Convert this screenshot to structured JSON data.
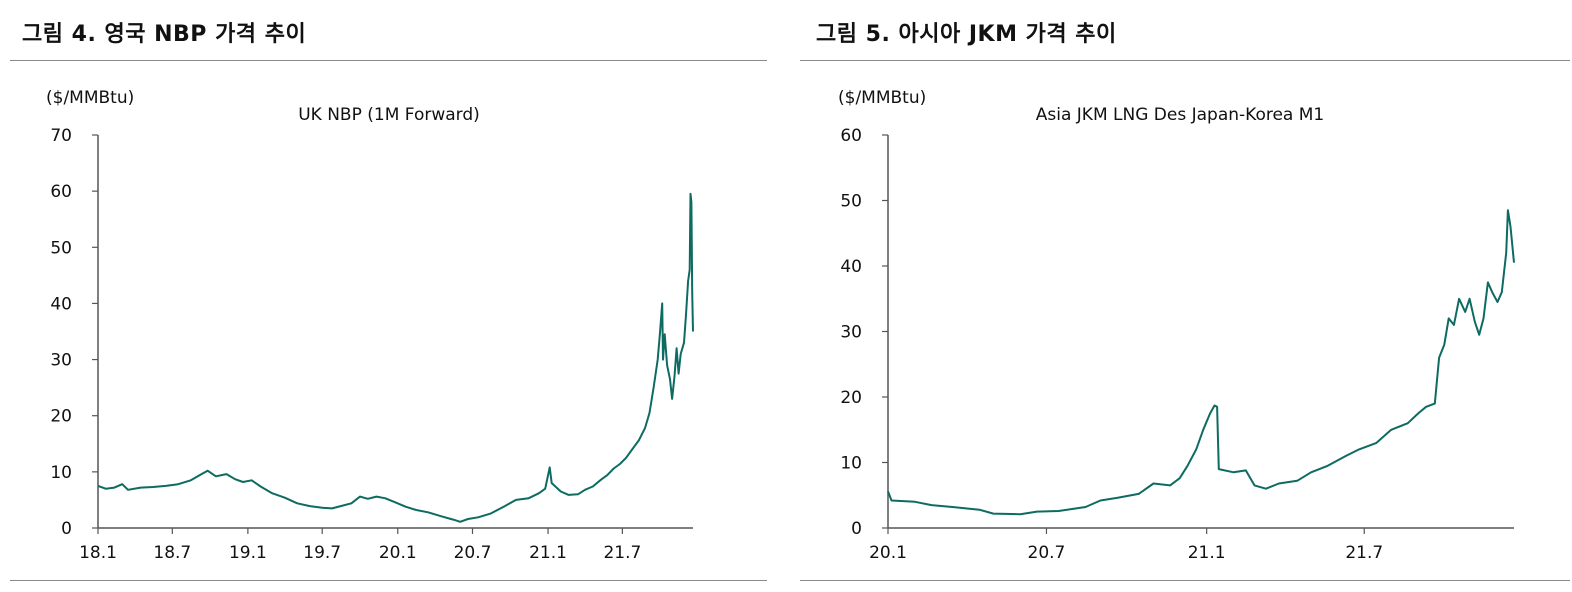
{
  "colors": {
    "line": "#0d6b61",
    "axis": "#555555",
    "rule": "#8a8a8a",
    "text": "#111111"
  },
  "chart_data": [
    {
      "figure_title": "그림 4. 영국 NBP 가격 추이",
      "type": "line",
      "title": "UK NBP (1M Forward)",
      "unit_label": "($/MMBtu)",
      "ylim": [
        0,
        70
      ],
      "yticks": [
        0,
        10,
        20,
        30,
        40,
        50,
        60,
        70
      ],
      "xlim": [
        "2018-01-01",
        "2021-12-20"
      ],
      "xticks": [
        {
          "label": "18.1",
          "date": "2018-01-01"
        },
        {
          "label": "18.7",
          "date": "2018-07-01"
        },
        {
          "label": "19.1",
          "date": "2019-01-01"
        },
        {
          "label": "19.7",
          "date": "2019-07-01"
        },
        {
          "label": "20.1",
          "date": "2020-01-01"
        },
        {
          "label": "20.7",
          "date": "2020-07-01"
        },
        {
          "label": "21.1",
          "date": "2021-01-01"
        },
        {
          "label": "21.7",
          "date": "2021-07-01"
        }
      ],
      "grid": false,
      "series": [
        {
          "values": [
            [
              "2018-01-01",
              7.5
            ],
            [
              "2018-01-20",
              7.0
            ],
            [
              "2018-02-10",
              7.2
            ],
            [
              "2018-03-01",
              7.8
            ],
            [
              "2018-03-15",
              6.8
            ],
            [
              "2018-04-15",
              7.2
            ],
            [
              "2018-05-15",
              7.3
            ],
            [
              "2018-06-15",
              7.5
            ],
            [
              "2018-07-15",
              7.8
            ],
            [
              "2018-08-15",
              8.5
            ],
            [
              "2018-09-10",
              9.6
            ],
            [
              "2018-09-25",
              10.2
            ],
            [
              "2018-10-15",
              9.2
            ],
            [
              "2018-11-10",
              9.6
            ],
            [
              "2018-12-01",
              8.7
            ],
            [
              "2018-12-20",
              8.2
            ],
            [
              "2019-01-10",
              8.5
            ],
            [
              "2019-02-01",
              7.4
            ],
            [
              "2019-03-01",
              6.2
            ],
            [
              "2019-04-01",
              5.4
            ],
            [
              "2019-05-01",
              4.4
            ],
            [
              "2019-06-01",
              3.9
            ],
            [
              "2019-07-01",
              3.6
            ],
            [
              "2019-07-25",
              3.5
            ],
            [
              "2019-08-15",
              3.9
            ],
            [
              "2019-09-10",
              4.4
            ],
            [
              "2019-10-01",
              5.6
            ],
            [
              "2019-10-20",
              5.2
            ],
            [
              "2019-11-10",
              5.6
            ],
            [
              "2019-12-01",
              5.3
            ],
            [
              "2019-12-25",
              4.6
            ],
            [
              "2020-01-20",
              3.8
            ],
            [
              "2020-02-15",
              3.2
            ],
            [
              "2020-03-15",
              2.8
            ],
            [
              "2020-04-15",
              2.1
            ],
            [
              "2020-05-15",
              1.5
            ],
            [
              "2020-06-01",
              1.1
            ],
            [
              "2020-06-20",
              1.6
            ],
            [
              "2020-07-15",
              1.9
            ],
            [
              "2020-08-15",
              2.6
            ],
            [
              "2020-09-15",
              3.8
            ],
            [
              "2020-10-15",
              5.0
            ],
            [
              "2020-11-15",
              5.3
            ],
            [
              "2020-12-10",
              6.2
            ],
            [
              "2020-12-25",
              7.0
            ],
            [
              "2021-01-05",
              10.8
            ],
            [
              "2021-01-10",
              8.0
            ],
            [
              "2021-02-01",
              6.5
            ],
            [
              "2021-02-20",
              5.9
            ],
            [
              "2021-03-15",
              6.0
            ],
            [
              "2021-04-01",
              6.8
            ],
            [
              "2021-04-20",
              7.4
            ],
            [
              "2021-05-10",
              8.6
            ],
            [
              "2021-05-25",
              9.4
            ],
            [
              "2021-06-10",
              10.6
            ],
            [
              "2021-06-25",
              11.4
            ],
            [
              "2021-07-10",
              12.5
            ],
            [
              "2021-07-25",
              14.0
            ],
            [
              "2021-08-10",
              15.6
            ],
            [
              "2021-08-25",
              17.8
            ],
            [
              "2021-09-05",
              20.5
            ],
            [
              "2021-09-15",
              25.0
            ],
            [
              "2021-09-25",
              30.0
            ],
            [
              "2021-10-01",
              35.0
            ],
            [
              "2021-10-06",
              40.0
            ],
            [
              "2021-10-08",
              30.0
            ],
            [
              "2021-10-12",
              34.5
            ],
            [
              "2021-10-18",
              29.0
            ],
            [
              "2021-10-25",
              26.5
            ],
            [
              "2021-10-30",
              23.0
            ],
            [
              "2021-11-05",
              27.0
            ],
            [
              "2021-11-10",
              32.0
            ],
            [
              "2021-11-15",
              27.5
            ],
            [
              "2021-11-20",
              31.0
            ],
            [
              "2021-11-28",
              33.0
            ],
            [
              "2021-12-03",
              38.0
            ],
            [
              "2021-12-08",
              44.0
            ],
            [
              "2021-12-12",
              46.0
            ],
            [
              "2021-12-14",
              59.5
            ],
            [
              "2021-12-16",
              58.0
            ],
            [
              "2021-12-18",
              42.0
            ],
            [
              "2021-12-20",
              35.0
            ]
          ]
        }
      ]
    },
    {
      "figure_title": "그림 5. 아시아 JKM 가격 추이",
      "type": "line",
      "title": "Asia JKM LNG Des Japan-Korea M1",
      "unit_label": "($/MMBtu)",
      "ylim": [
        0,
        60
      ],
      "yticks": [
        0,
        10,
        20,
        30,
        40,
        50,
        60
      ],
      "xlim": [
        "2020-01-01",
        "2021-12-20"
      ],
      "xticks": [
        {
          "label": "20.1",
          "date": "2020-01-01"
        },
        {
          "label": "20.7",
          "date": "2020-07-01"
        },
        {
          "label": "21.1",
          "date": "2021-01-01"
        },
        {
          "label": "21.7",
          "date": "2021-07-01"
        }
      ],
      "grid": false,
      "series": [
        {
          "values": [
            [
              "2020-01-01",
              5.6
            ],
            [
              "2020-01-05",
              4.2
            ],
            [
              "2020-02-01",
              4.0
            ],
            [
              "2020-02-20",
              3.5
            ],
            [
              "2020-03-15",
              3.2
            ],
            [
              "2020-04-15",
              2.8
            ],
            [
              "2020-05-01",
              2.2
            ],
            [
              "2020-06-01",
              2.1
            ],
            [
              "2020-06-20",
              2.5
            ],
            [
              "2020-07-15",
              2.6
            ],
            [
              "2020-08-15",
              3.2
            ],
            [
              "2020-09-01",
              4.2
            ],
            [
              "2020-09-20",
              4.6
            ],
            [
              "2020-10-15",
              5.2
            ],
            [
              "2020-11-01",
              6.8
            ],
            [
              "2020-11-20",
              6.5
            ],
            [
              "2020-12-01",
              7.6
            ],
            [
              "2020-12-10",
              9.5
            ],
            [
              "2020-12-20",
              12.0
            ],
            [
              "2020-12-28",
              15.0
            ],
            [
              "2021-01-05",
              17.5
            ],
            [
              "2021-01-10",
              18.7
            ],
            [
              "2021-01-13",
              18.5
            ],
            [
              "2021-01-15",
              9.0
            ],
            [
              "2021-02-01",
              8.5
            ],
            [
              "2021-02-15",
              8.8
            ],
            [
              "2021-02-25",
              6.5
            ],
            [
              "2021-03-10",
              6.0
            ],
            [
              "2021-03-25",
              6.8
            ],
            [
              "2021-04-15",
              7.2
            ],
            [
              "2021-05-01",
              8.5
            ],
            [
              "2021-05-20",
              9.5
            ],
            [
              "2021-06-10",
              11.0
            ],
            [
              "2021-06-25",
              12.0
            ],
            [
              "2021-07-15",
              13.0
            ],
            [
              "2021-08-01",
              15.0
            ],
            [
              "2021-08-20",
              16.0
            ],
            [
              "2021-09-01",
              17.5
            ],
            [
              "2021-09-10",
              18.5
            ],
            [
              "2021-09-20",
              19.0
            ],
            [
              "2021-09-25",
              26.0
            ],
            [
              "2021-10-01",
              28.0
            ],
            [
              "2021-10-06",
              32.0
            ],
            [
              "2021-10-12",
              31.0
            ],
            [
              "2021-10-18",
              35.0
            ],
            [
              "2021-10-25",
              33.0
            ],
            [
              "2021-10-30",
              35.0
            ],
            [
              "2021-11-05",
              31.5
            ],
            [
              "2021-11-10",
              29.5
            ],
            [
              "2021-11-15",
              32.0
            ],
            [
              "2021-11-20",
              37.5
            ],
            [
              "2021-11-25",
              36.0
            ],
            [
              "2021-12-01",
              34.5
            ],
            [
              "2021-12-06",
              36.0
            ],
            [
              "2021-12-11",
              42.0
            ],
            [
              "2021-12-13",
              48.5
            ],
            [
              "2021-12-16",
              46.0
            ],
            [
              "2021-12-20",
              40.5
            ]
          ]
        }
      ]
    }
  ]
}
